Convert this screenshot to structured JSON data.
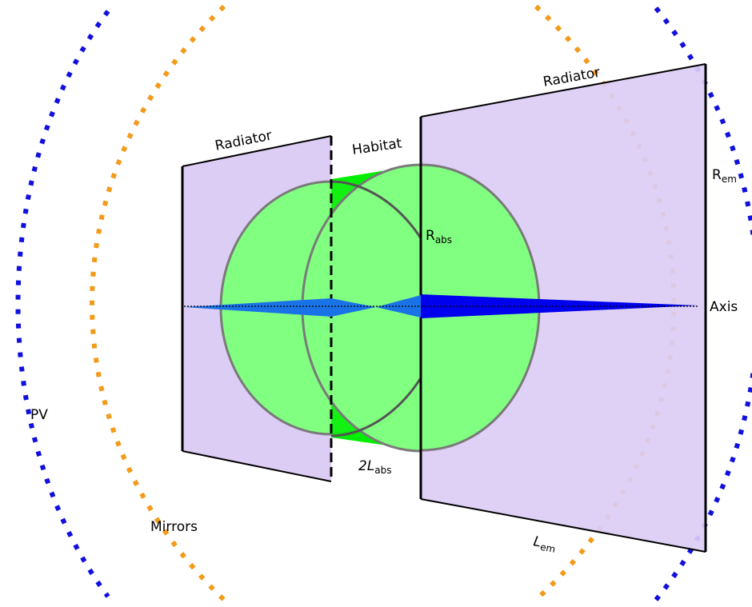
{
  "labels": {
    "radiator_left": "Radiator",
    "radiator_right": "Radiator",
    "habitat": "Habitat",
    "r_abs_main": "R",
    "r_abs_sub": "abs",
    "r_em_main": "R",
    "r_em_sub": "em",
    "axis": "Axis",
    "pv": "PV",
    "mirrors": "Mirrors",
    "two_l_abs_main": "2L",
    "two_l_abs_sub": "abs",
    "l_em_main": "L",
    "l_em_sub": "em"
  },
  "colors": {
    "radiator_fill": "#dccdf5",
    "habitat_fill": "#00ee00",
    "habitat_light": "#80ff80",
    "disk_edge": "#7a7a7a",
    "cone_light": "#1a73e6",
    "cone_dark": "#0000ee",
    "mirrors_dots": "#f29b1a",
    "pv_dots": "#1010dd",
    "line": "#000000"
  }
}
